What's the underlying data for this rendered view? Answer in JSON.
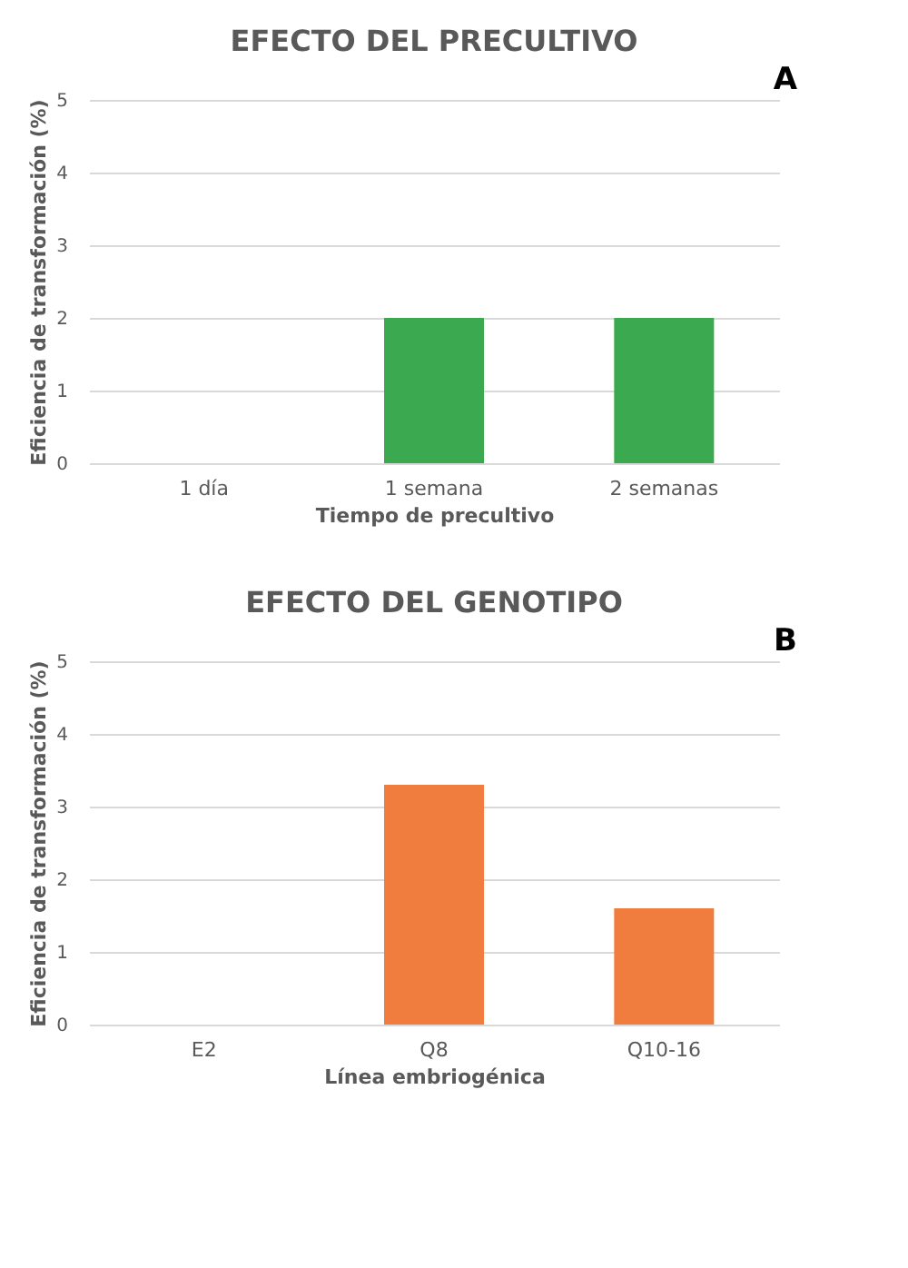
{
  "chart_data": [
    {
      "type": "bar",
      "title": "EFECTO DEL PRECULTIVO",
      "xlabel": "Tiempo de precultivo",
      "ylabel": "Eficiencia de transformación (%)",
      "categories": [
        "1 día",
        "1 semana",
        "2 semanas"
      ],
      "values": [
        0,
        2,
        2
      ],
      "color": "#3aa94f",
      "ylim": [
        0,
        5
      ],
      "yticks": [
        0,
        1,
        2,
        3,
        4,
        5
      ],
      "grid": "y",
      "annotations": [
        "A"
      ]
    },
    {
      "type": "bar",
      "title": "EFECTO DEL GENOTIPO",
      "xlabel": "Línea embriogénica",
      "ylabel": "Eficiencia de transformación (%)",
      "categories": [
        "E2",
        "Q8",
        "Q10-16"
      ],
      "values": [
        0,
        3.3,
        1.6
      ],
      "color": "#f07d3e",
      "ylim": [
        0,
        5
      ],
      "yticks": [
        0,
        1,
        2,
        3,
        4,
        5
      ],
      "grid": "y",
      "annotations": [
        "B"
      ]
    }
  ]
}
